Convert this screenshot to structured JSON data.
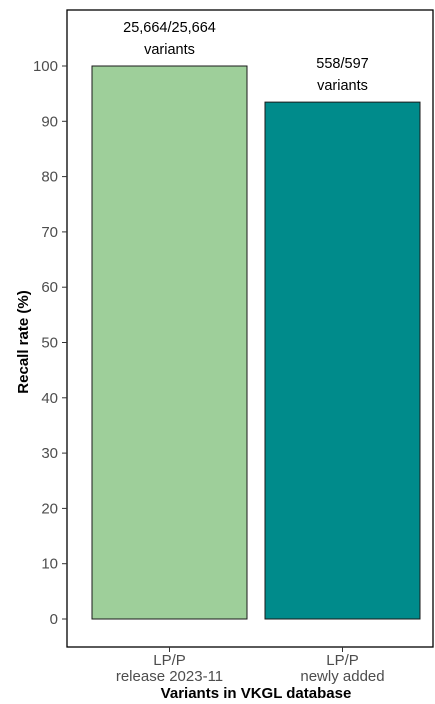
{
  "chart_data": {
    "type": "bar",
    "title": "",
    "xlabel": "Variants in VKGL database",
    "ylabel": "Recall rate (%)",
    "ylim": [
      0,
      100
    ],
    "yticks": [
      0,
      10,
      20,
      30,
      40,
      50,
      60,
      70,
      80,
      90,
      100
    ],
    "grid": false,
    "legend": "none",
    "categories": [
      [
        "LP/P",
        "release 2023-11"
      ],
      [
        "LP/P",
        "newly added"
      ]
    ],
    "values": [
      100,
      93.47
    ],
    "data_labels": [
      [
        "25,664/25,664",
        "variants"
      ],
      [
        "558/597",
        "variants"
      ]
    ],
    "colors": [
      "#9ecf9a",
      "#008b8b"
    ]
  }
}
